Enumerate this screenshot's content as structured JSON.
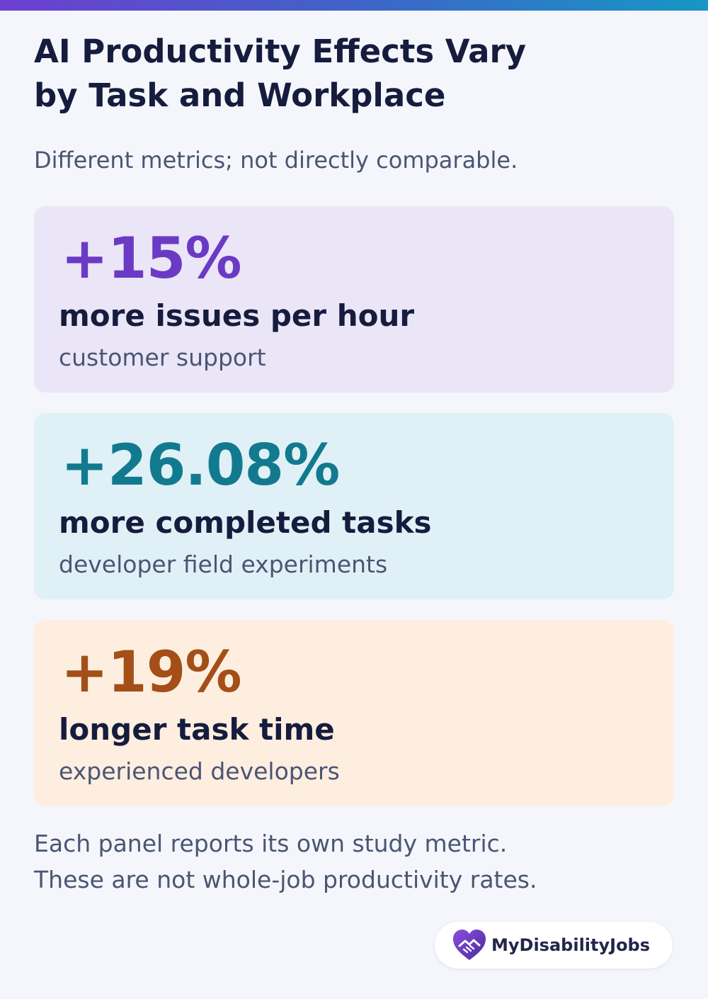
{
  "header": {
    "title_line1": "AI Productivity Effects Vary",
    "title_line2": "by Task and Workplace",
    "subtitle": "Different metrics; not directly comparable."
  },
  "panels": [
    {
      "value": "+15%",
      "label": "more issues per hour",
      "context": "customer support",
      "accent_color": "#6b3ac4",
      "background_color": "#ebe5f8"
    },
    {
      "value": "+26.08%",
      "label": "more completed tasks",
      "context": "developer field experiments",
      "accent_color": "#127a8e",
      "background_color": "#e0f0f7"
    },
    {
      "value": "+19%",
      "label": "longer task time",
      "context": "experienced developers",
      "accent_color": "#a34f17",
      "background_color": "#fdeee0"
    }
  ],
  "footnote": {
    "line1": "Each panel reports its own study metric.",
    "line2": "These are not whole-job productivity rates."
  },
  "brand": {
    "name": "MyDisabilityJobs",
    "icon": "heart-handshake-icon"
  }
}
